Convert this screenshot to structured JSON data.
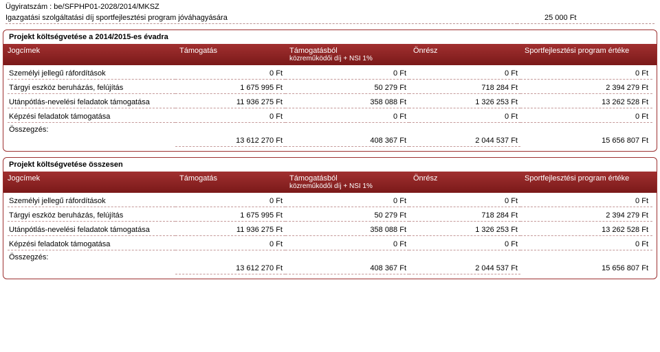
{
  "header": {
    "doc_number": "Ügyiratszám : be/SFPHP01-2028/2014/MKSZ",
    "fee_label": "Igazgatási szolgáltatási díj sportfejlesztési program jóváhagyására",
    "fee_value": "25 000 Ft"
  },
  "section1": {
    "title": "Projekt költségvetése a 2014/2015-es évadra",
    "headers": {
      "col1": "Jogcímek",
      "col2": "Támogatás",
      "col3a": "Támogatásból",
      "col3b": "közreműködői díj + NSI 1%",
      "col4": "Önrész",
      "col5": "Sportfejlesztési program értéke"
    },
    "rows": [
      {
        "label": "Személyi jellegű ráfordítások",
        "v1": "0 Ft",
        "v2": "0 Ft",
        "v3": "0 Ft",
        "v4": "0 Ft"
      },
      {
        "label": "Tárgyi eszköz beruházás, felújítás",
        "v1": "1 675 995 Ft",
        "v2": "50 279 Ft",
        "v3": "718 284 Ft",
        "v4": "2 394 279 Ft"
      },
      {
        "label": "Utánpótlás-nevelési feladatok támogatása",
        "v1": "11 936 275 Ft",
        "v2": "358 088 Ft",
        "v3": "1 326 253 Ft",
        "v4": "13 262 528 Ft"
      },
      {
        "label": "Képzési feladatok támogatása",
        "v1": "0 Ft",
        "v2": "0 Ft",
        "v3": "0 Ft",
        "v4": "0 Ft"
      }
    ],
    "summary_label": "Összegzés:",
    "summary": {
      "v1": "13 612 270 Ft",
      "v2": "408 367 Ft",
      "v3": "2 044 537 Ft",
      "v4": "15 656 807 Ft"
    }
  },
  "section2": {
    "title": "Projekt költségvetése összesen",
    "headers": {
      "col1": "Jogcímek",
      "col2": "Támogatás",
      "col3a": "Támogatásból",
      "col3b": "közreműködői díj + NSI 1%",
      "col4": "Önrész",
      "col5": "Sportfejlesztési program értéke"
    },
    "rows": [
      {
        "label": "Személyi jellegű ráfordítások",
        "v1": "0 Ft",
        "v2": "0 Ft",
        "v3": "0 Ft",
        "v4": "0 Ft"
      },
      {
        "label": "Tárgyi eszköz beruházás, felújítás",
        "v1": "1 675 995 Ft",
        "v2": "50 279 Ft",
        "v3": "718 284 Ft",
        "v4": "2 394 279 Ft"
      },
      {
        "label": "Utánpótlás-nevelési feladatok támogatása",
        "v1": "11 936 275 Ft",
        "v2": "358 088 Ft",
        "v3": "1 326 253 Ft",
        "v4": "13 262 528 Ft"
      },
      {
        "label": "Képzési feladatok támogatása",
        "v1": "0 Ft",
        "v2": "0 Ft",
        "v3": "0 Ft",
        "v4": "0 Ft"
      }
    ],
    "summary_label": "Összegzés:",
    "summary": {
      "v1": "13 612 270 Ft",
      "v2": "408 367 Ft",
      "v3": "2 044 537 Ft",
      "v4": "15 656 807 Ft"
    }
  }
}
